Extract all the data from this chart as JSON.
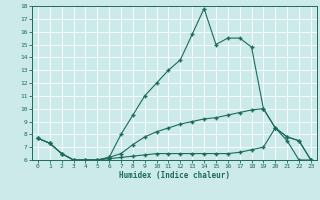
{
  "xlabel": "Humidex (Indice chaleur)",
  "background_color": "#cceaea",
  "line_color": "#1a6b5a",
  "grid_color": "#ffffff",
  "xmin": 0,
  "xmax": 23,
  "ymin": 6,
  "ymax": 18,
  "line1_x": [
    0,
    1,
    2,
    3,
    4,
    5,
    6,
    7,
    8,
    9,
    10,
    11,
    12,
    13,
    14,
    15,
    16,
    17,
    18,
    19,
    20,
    21,
    22,
    23
  ],
  "line1_y": [
    7.7,
    7.3,
    6.5,
    6.0,
    6.0,
    6.0,
    6.2,
    8.0,
    9.5,
    11.0,
    12.0,
    13.0,
    13.8,
    15.8,
    17.8,
    15.0,
    15.5,
    15.5,
    14.8,
    10.0,
    8.5,
    7.8,
    7.5,
    6.0
  ],
  "line2_x": [
    0,
    1,
    2,
    3,
    4,
    5,
    6,
    7,
    8,
    9,
    10,
    11,
    12,
    13,
    14,
    15,
    16,
    17,
    18,
    19,
    20,
    21,
    22,
    23
  ],
  "line2_y": [
    7.7,
    7.3,
    6.5,
    6.0,
    6.0,
    6.0,
    6.2,
    6.5,
    7.2,
    7.8,
    8.2,
    8.5,
    8.8,
    9.0,
    9.2,
    9.3,
    9.5,
    9.7,
    9.9,
    10.0,
    8.5,
    7.8,
    7.5,
    6.0
  ],
  "line3_x": [
    0,
    1,
    2,
    3,
    4,
    5,
    6,
    7,
    8,
    9,
    10,
    11,
    12,
    13,
    14,
    15,
    16,
    17,
    18,
    19,
    20,
    21,
    22,
    23
  ],
  "line3_y": [
    7.7,
    7.3,
    6.5,
    6.0,
    6.0,
    6.0,
    6.1,
    6.2,
    6.3,
    6.4,
    6.5,
    6.5,
    6.5,
    6.5,
    6.5,
    6.5,
    6.5,
    6.6,
    6.8,
    7.0,
    8.5,
    7.5,
    6.0,
    6.0
  ]
}
